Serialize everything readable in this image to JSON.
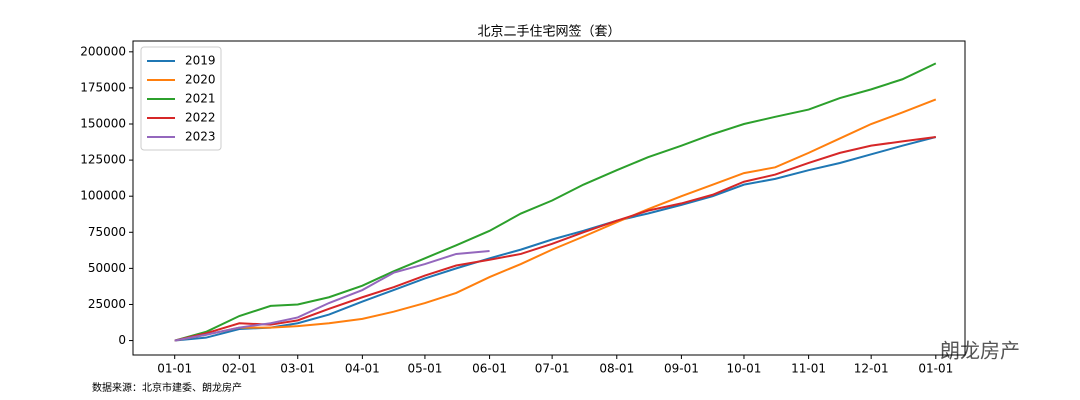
{
  "chart_data": {
    "type": "line",
    "title": "北京二手住宅网签（套）",
    "source": "数据来源：北京市建委、朗龙房产",
    "watermark": "朗龙房产",
    "x": [
      0,
      15,
      31,
      46,
      59,
      74,
      90,
      105,
      120,
      135,
      151,
      166,
      181,
      196,
      212,
      227,
      243,
      258,
      273,
      288,
      304,
      319,
      334,
      349,
      365
    ],
    "series": [
      {
        "name": "2019",
        "color": "#1f77b4",
        "values": [
          0,
          2000,
          8000,
          9000,
          12000,
          18000,
          27000,
          35000,
          43000,
          50000,
          57000,
          63000,
          70000,
          76000,
          83000,
          88000,
          94000,
          100000,
          108000,
          112000,
          118000,
          123000,
          129000,
          135000,
          141000
        ]
      },
      {
        "name": "2020",
        "color": "#ff7f0e",
        "values": [
          0,
          4000,
          9000,
          9000,
          10000,
          12000,
          15000,
          20000,
          26000,
          33000,
          44000,
          53000,
          63000,
          72000,
          82000,
          91000,
          100000,
          108000,
          116000,
          120000,
          130000,
          140000,
          150000,
          158000,
          167000
        ]
      },
      {
        "name": "2021",
        "color": "#2ca02c",
        "values": [
          0,
          6000,
          17000,
          24000,
          25000,
          30000,
          38000,
          48000,
          57000,
          66000,
          76000,
          88000,
          97000,
          108000,
          118000,
          127000,
          135000,
          143000,
          150000,
          155000,
          160000,
          168000,
          174000,
          181000,
          192000
        ]
      },
      {
        "name": "2022",
        "color": "#d62728",
        "values": [
          0,
          5000,
          12000,
          11000,
          14000,
          22000,
          30000,
          37000,
          45000,
          52000,
          56000,
          60000,
          67000,
          75000,
          83000,
          90000,
          95000,
          101000,
          110000,
          115000,
          123000,
          130000,
          135000,
          138000,
          141000
        ]
      },
      {
        "name": "2023",
        "color": "#9467bd",
        "values": [
          0,
          4000,
          9000,
          12000,
          16000,
          26000,
          35000,
          47000,
          53000,
          60000,
          62000,
          null,
          null,
          null,
          null,
          null,
          null,
          null,
          null,
          null,
          null,
          null,
          null,
          null,
          null
        ]
      }
    ],
    "xlim": [
      -20,
      379
    ],
    "xticks": [
      {
        "value": 0,
        "label": "01-01"
      },
      {
        "value": 31,
        "label": "02-01"
      },
      {
        "value": 59,
        "label": "03-01"
      },
      {
        "value": 90,
        "label": "04-01"
      },
      {
        "value": 120,
        "label": "05-01"
      },
      {
        "value": 151,
        "label": "06-01"
      },
      {
        "value": 181,
        "label": "07-01"
      },
      {
        "value": 212,
        "label": "08-01"
      },
      {
        "value": 243,
        "label": "09-01"
      },
      {
        "value": 273,
        "label": "10-01"
      },
      {
        "value": 304,
        "label": "11-01"
      },
      {
        "value": 334,
        "label": "12-01"
      },
      {
        "value": 365,
        "label": "01-01"
      }
    ],
    "ylim": [
      -10000,
      207500
    ],
    "yticks": [
      0,
      25000,
      50000,
      75000,
      100000,
      125000,
      150000,
      175000,
      200000
    ],
    "legend": "upper left",
    "grid": false
  }
}
